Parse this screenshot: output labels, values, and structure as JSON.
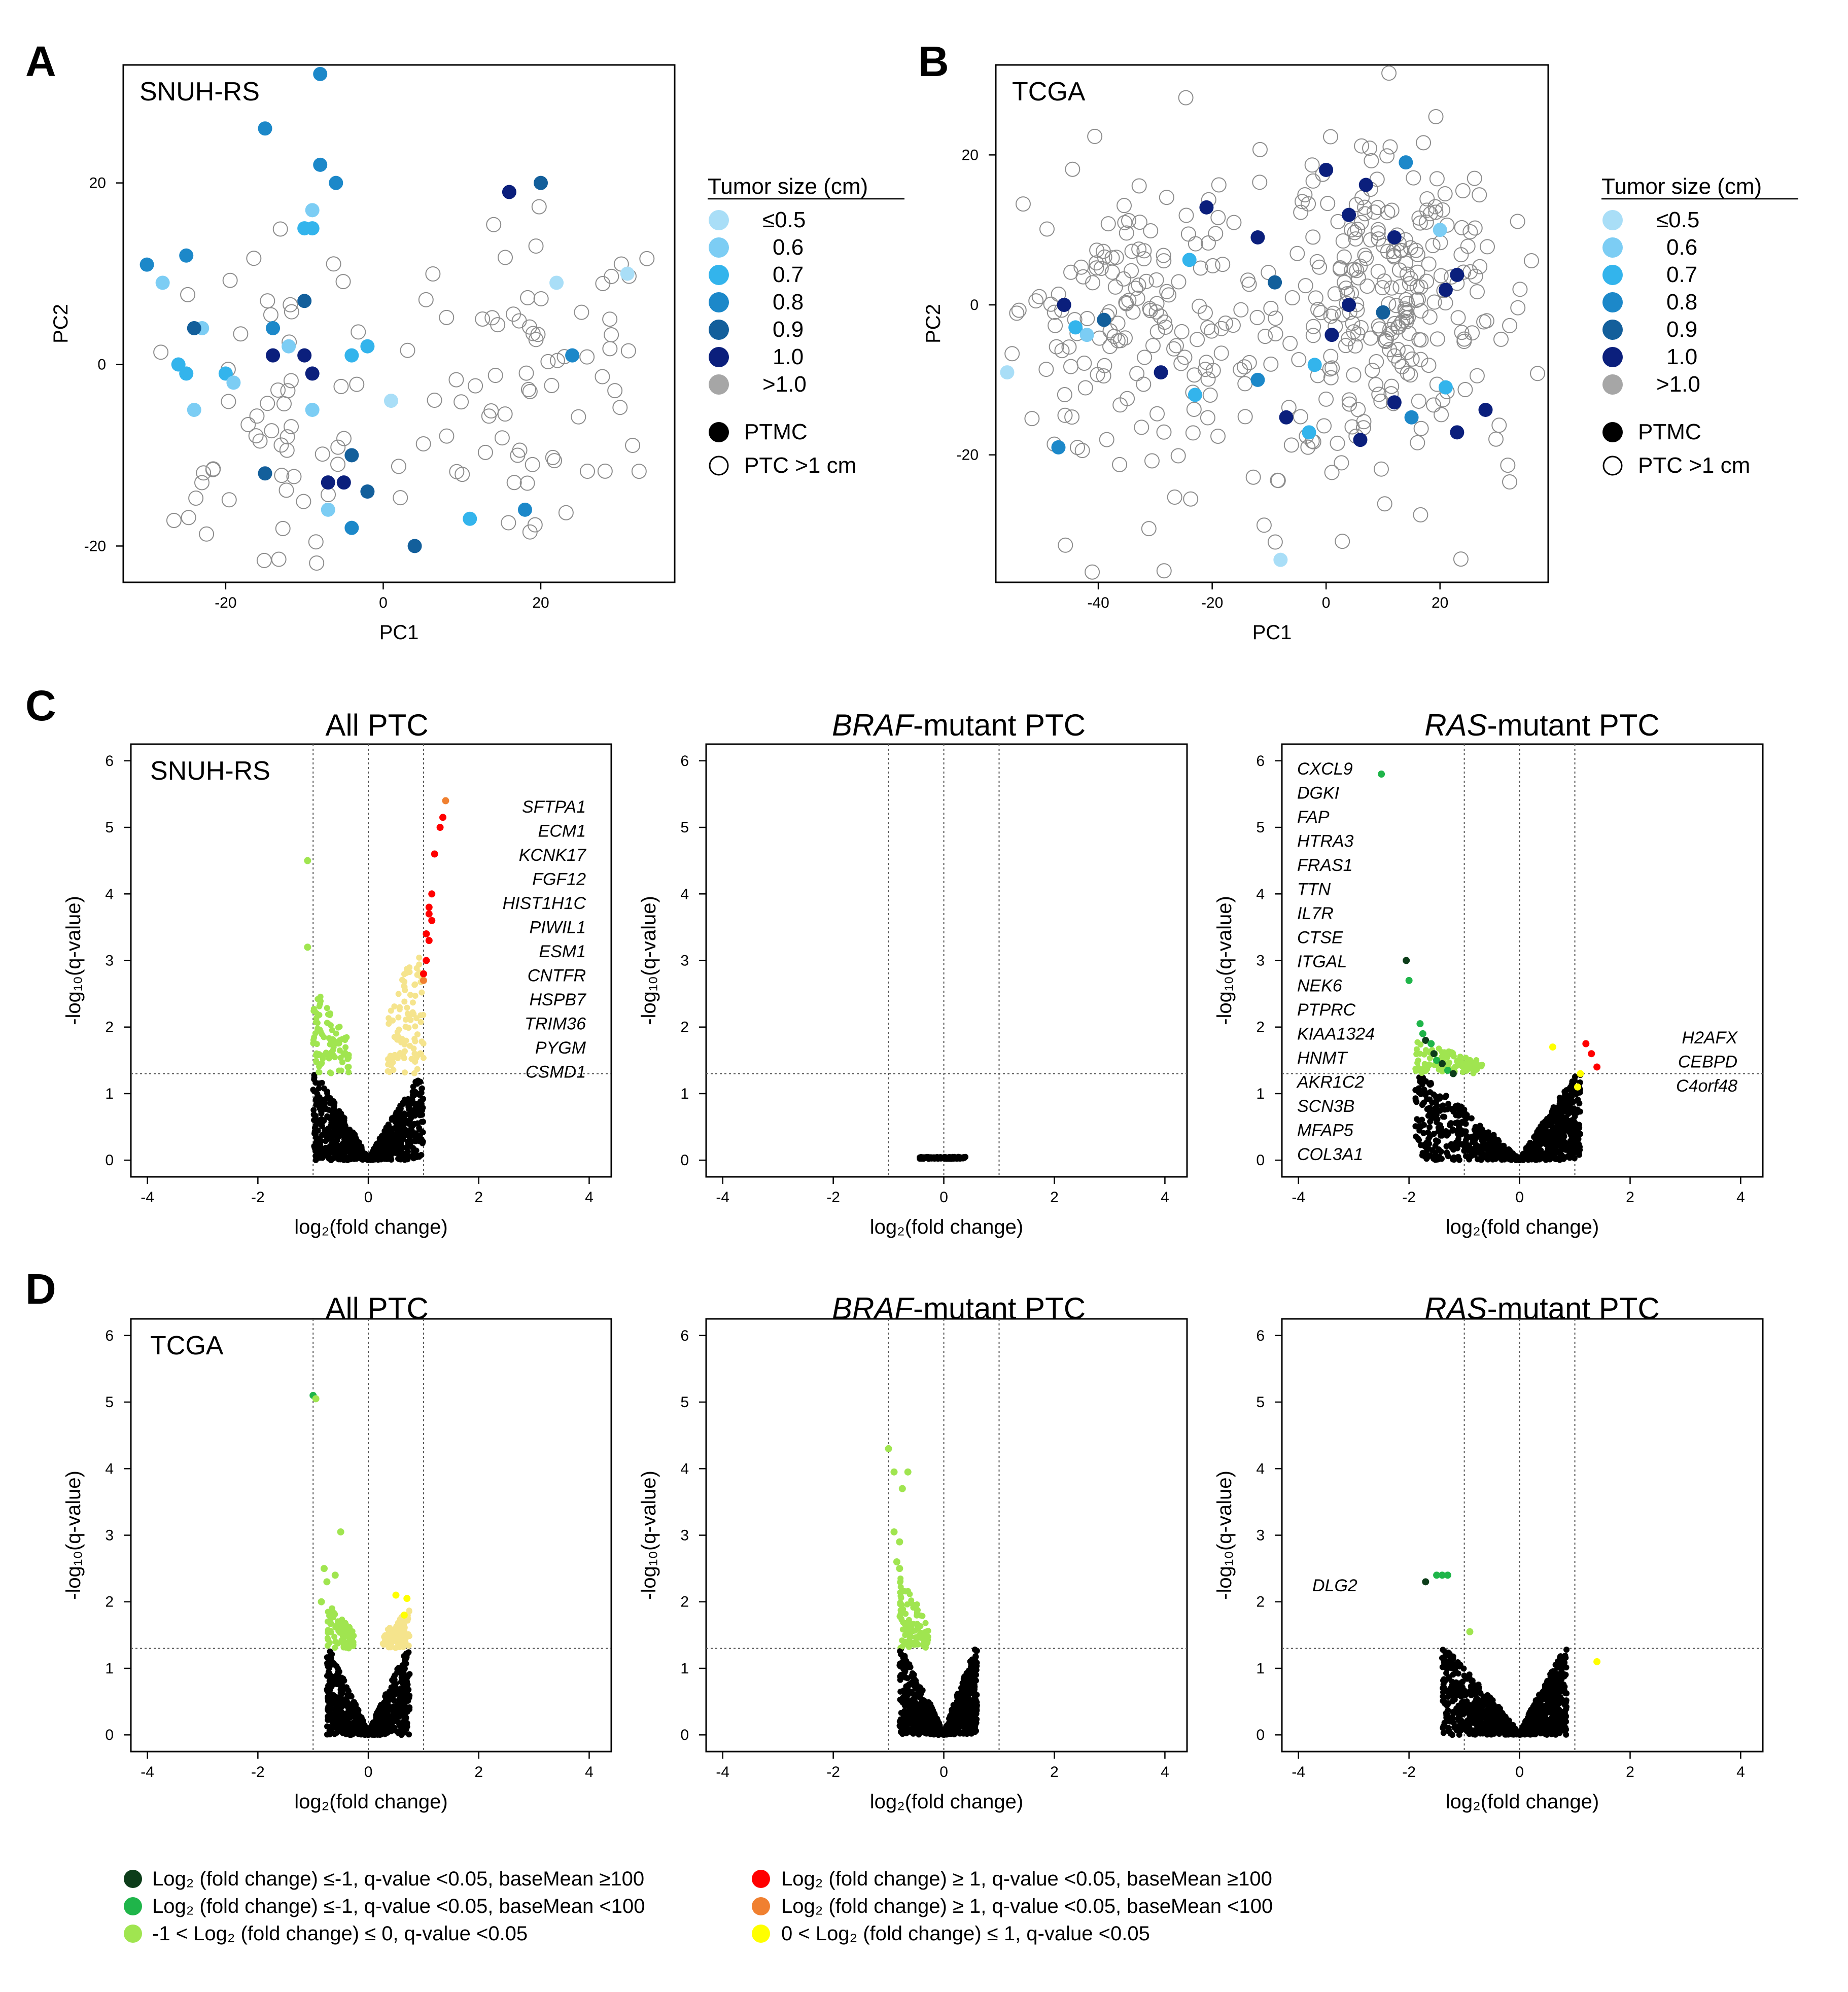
{
  "figure": {
    "panel_letters": [
      "A",
      "B",
      "C",
      "D"
    ],
    "subtitle_all": "All PTC",
    "subtitle_braf_italic": "BRAF",
    "subtitle_braf_rest": "-mutant PTC",
    "subtitle_ras_italic": "RAS",
    "subtitle_ras_rest": "-mutant PTC"
  },
  "tumor_legend": {
    "title": "Tumor size (cm)",
    "items": [
      {
        "label": "≤0.5",
        "color": "#a9def7"
      },
      {
        "label": "0.6",
        "color": "#7ccdf4"
      },
      {
        "label": "0.7",
        "color": "#33b4ec"
      },
      {
        "label": "0.8",
        "color": "#1c88c9"
      },
      {
        "label": "0.9",
        "color": "#135f9b"
      },
      {
        "label": "1.0",
        "color": "#0b1f7c"
      },
      {
        "label": ">1.0",
        "color": "#a6a6a6"
      }
    ],
    "shape_items": [
      "PTMC",
      "PTC >1 cm"
    ]
  },
  "bottom_legend": {
    "left": [
      {
        "text": "Log₂ (fold change) ≤-1, q-value <0.05, baseMean ≥100",
        "color": "#0d3d1a"
      },
      {
        "text": "Log₂ (fold change) ≤-1, q-value <0.05, baseMean <100",
        "color": "#1fb54a"
      },
      {
        "text": "-1 < Log₂ (fold change) ≤ 0, q-value <0.05",
        "color": "#a0e550"
      }
    ],
    "right": [
      {
        "text": "Log₂ (fold change) ≥ 1, q-value <0.05, baseMean ≥100",
        "color": "#ff0000"
      },
      {
        "text": "Log₂ (fold change) ≥ 1, q-value <0.05, baseMean <100",
        "color": "#f08030"
      },
      {
        "text": "0 < Log₂ (fold change) ≤ 1, q-value <0.05",
        "color": "#ffff00"
      }
    ]
  },
  "chart_data": [
    {
      "id": "A",
      "type": "scatter",
      "title": "SNUH-RS",
      "xlabel": "PC1",
      "ylabel": "PC2",
      "xlim": [
        -33,
        37
      ],
      "ylim": [
        -24,
        33
      ],
      "xticks": [
        -20,
        0,
        20
      ],
      "yticks": [
        -20,
        0,
        20
      ],
      "ptmc": [
        [
          -8,
          32
        ],
        [
          -15,
          26
        ],
        [
          -8,
          22
        ],
        [
          -6,
          20
        ],
        [
          -9,
          17
        ],
        [
          -10,
          15
        ],
        [
          -9,
          15
        ],
        [
          -30,
          11
        ],
        [
          -25,
          12
        ],
        [
          -28,
          9
        ],
        [
          -10,
          7
        ],
        [
          -14,
          4
        ],
        [
          -23,
          4
        ],
        [
          -24,
          4
        ],
        [
          -26,
          0
        ],
        [
          -25,
          -1
        ],
        [
          -20,
          -1
        ],
        [
          -19,
          -2
        ],
        [
          -24,
          -5
        ],
        [
          -9,
          -1
        ],
        [
          -14,
          1
        ],
        [
          -10,
          1
        ],
        [
          -12,
          2
        ],
        [
          -4,
          1
        ],
        [
          -2,
          2
        ],
        [
          -9,
          -5
        ],
        [
          -4,
          -10
        ],
        [
          -15,
          -12
        ],
        [
          -7,
          -13
        ],
        [
          -5,
          -13
        ],
        [
          -2,
          -14
        ],
        [
          -7,
          -16
        ],
        [
          -4,
          -18
        ],
        [
          4,
          -20
        ],
        [
          16,
          19
        ],
        [
          20,
          20
        ],
        [
          22,
          9
        ],
        [
          24,
          1
        ],
        [
          31,
          10
        ],
        [
          18,
          -16
        ],
        [
          11,
          -17
        ],
        [
          1,
          -4
        ]
      ],
      "ptmc_colors": [
        "0.8",
        "0.8",
        "0.8",
        "0.8",
        "0.6",
        "0.7",
        "0.7",
        "0.8",
        "0.8",
        "0.6",
        "0.9",
        "0.8",
        "0.6",
        "0.9",
        "0.7",
        "0.7",
        "0.7",
        "0.6",
        "0.6",
        "1.0",
        "1.0",
        "1.0",
        "0.6",
        "0.7",
        "0.7",
        "0.6",
        "0.9",
        "0.9",
        "1.0",
        "1.0",
        "0.9",
        "0.6",
        "0.8",
        "0.9",
        "1.0",
        "0.9",
        "≤0.5",
        "0.8",
        "≤0.5",
        "0.8",
        "0.7",
        "≤0.5"
      ]
    },
    {
      "id": "B",
      "type": "scatter",
      "title": "TCGA",
      "xlabel": "PC1",
      "ylabel": "PC2",
      "xlim": [
        -58,
        39
      ],
      "ylim": [
        -37,
        32
      ],
      "xticks": [
        -40,
        -20,
        0,
        20
      ],
      "yticks": [
        -20,
        0,
        20
      ],
      "ptmc": [
        [
          0,
          18
        ],
        [
          7,
          16
        ],
        [
          14,
          19
        ],
        [
          4,
          12
        ],
        [
          12,
          9
        ],
        [
          20,
          10
        ],
        [
          23,
          4
        ],
        [
          -12,
          9
        ],
        [
          -21,
          13
        ],
        [
          -9,
          3
        ],
        [
          4,
          0
        ],
        [
          10,
          -1
        ],
        [
          21,
          2
        ],
        [
          1,
          -4
        ],
        [
          -46,
          0
        ],
        [
          -39,
          -2
        ],
        [
          -44,
          -3
        ],
        [
          -29,
          -9
        ],
        [
          -23,
          -12
        ],
        [
          -12,
          -10
        ],
        [
          -2,
          -8
        ],
        [
          12,
          -13
        ],
        [
          15,
          -15
        ],
        [
          23,
          -17
        ],
        [
          28,
          -14
        ],
        [
          6,
          -18
        ],
        [
          -7,
          -15
        ],
        [
          -3,
          -17
        ],
        [
          -47,
          -19
        ],
        [
          -8,
          -34
        ],
        [
          -24,
          6
        ],
        [
          -42,
          -4
        ],
        [
          -56,
          -9
        ],
        [
          21,
          -11
        ]
      ],
      "ptmc_colors": [
        "1.0",
        "1.0",
        "0.8",
        "1.0",
        "1.0",
        "0.6",
        "1.0",
        "1.0",
        "1.0",
        "0.9",
        "1.0",
        "0.9",
        "1.0",
        "1.0",
        "1.0",
        "0.9",
        "0.7",
        "1.0",
        "0.7",
        "0.8",
        "0.7",
        "1.0",
        "0.8",
        "1.0",
        "1.0",
        "1.0",
        "1.0",
        "0.7",
        "0.8",
        "≤0.5",
        "0.7",
        "0.6",
        "≤0.5",
        "0.7"
      ]
    },
    {
      "id": "C1",
      "type": "scatter",
      "title": "All PTC",
      "corner_label": "SNUH-RS",
      "xlabel": "log₂(fold change)",
      "ylabel": "-log₁₀(q-value)",
      "xlim": [
        -4.3,
        4.4
      ],
      "ylim": [
        -0.25,
        6.25
      ],
      "xticks": [
        -4,
        -2,
        0,
        2,
        4
      ],
      "yticks": [
        0,
        1,
        2,
        3,
        4,
        5,
        6
      ],
      "genes_up": [
        "SFTPA1",
        "ECM1",
        "KCNK17",
        "FGF12",
        "HIST1H1C",
        "PIWIL1",
        "ESM1",
        "CNTFR",
        "HSPB7",
        "TRIM36",
        "PYGM",
        "CSMD1"
      ],
      "genes_down": [],
      "highlight": [
        {
          "x": -1.1,
          "y": 4.5,
          "cat": "lightgreen"
        },
        {
          "x": -1.1,
          "y": 3.2,
          "cat": "lightgreen"
        },
        {
          "x": 1.4,
          "y": 5.4,
          "cat": "orange"
        },
        {
          "x": 1.35,
          "y": 5.15,
          "cat": "red"
        },
        {
          "x": 1.3,
          "y": 5.0,
          "cat": "red"
        },
        {
          "x": 1.2,
          "y": 4.6,
          "cat": "red"
        },
        {
          "x": 1.15,
          "y": 4.0,
          "cat": "red"
        },
        {
          "x": 1.1,
          "y": 3.8,
          "cat": "red"
        },
        {
          "x": 1.1,
          "y": 3.7,
          "cat": "red"
        },
        {
          "x": 1.15,
          "y": 3.6,
          "cat": "red"
        },
        {
          "x": 1.05,
          "y": 3.4,
          "cat": "red"
        },
        {
          "x": 1.1,
          "y": 3.3,
          "cat": "red"
        },
        {
          "x": 1.05,
          "y": 3.0,
          "cat": "red"
        },
        {
          "x": 1.0,
          "y": 2.8,
          "cat": "red"
        },
        {
          "x": 1.0,
          "y": 2.7,
          "cat": "orange"
        }
      ],
      "cloud": {
        "xmin": -1.0,
        "xmax": 1.0,
        "ymax_sig": 2.7,
        "ymax_sig_pos": 3.6
      }
    },
    {
      "id": "C2",
      "type": "scatter",
      "title": "BRAF-mutant PTC",
      "xlabel": "log₂(fold change)",
      "ylabel": "-log₁₀(q-value)",
      "xlim": [
        -4.3,
        4.4
      ],
      "ylim": [
        -0.25,
        6.25
      ],
      "xticks": [
        -4,
        -2,
        0,
        2,
        4
      ],
      "yticks": [
        0,
        1,
        2,
        3,
        4,
        5,
        6
      ],
      "flat": {
        "xmin": -0.45,
        "xmax": 0.4,
        "y": 0.02
      }
    },
    {
      "id": "C3",
      "type": "scatter",
      "title": "RAS-mutant PTC",
      "xlabel": "log₂(fold change)",
      "ylabel": "-log₁₀(q-value)",
      "xlim": [
        -4.3,
        4.4
      ],
      "ylim": [
        -0.25,
        6.25
      ],
      "xticks": [
        -4,
        -2,
        0,
        2,
        4
      ],
      "yticks": [
        0,
        1,
        2,
        3,
        4,
        5,
        6
      ],
      "genes_down": [
        "CXCL9",
        "DGKI",
        "FAP",
        "HTRA3",
        "FRAS1",
        "TTN",
        "IL7R",
        "CTSE",
        "ITGAL",
        "NEK6",
        "PTPRC",
        "KIAA1324",
        "HNMT",
        "AKR1C2",
        "SCN3B",
        "MFAP5",
        "COL3A1"
      ],
      "genes_up": [
        "H2AFX",
        "CEBPD",
        "C4orf48"
      ],
      "highlight": [
        {
          "x": -2.5,
          "y": 5.8,
          "cat": "green"
        },
        {
          "x": -2.05,
          "y": 3.0,
          "cat": "darkgreen"
        },
        {
          "x": -2.0,
          "y": 2.7,
          "cat": "green"
        },
        {
          "x": -1.8,
          "y": 2.05,
          "cat": "green"
        },
        {
          "x": -1.75,
          "y": 1.9,
          "cat": "green"
        },
        {
          "x": -1.7,
          "y": 1.8,
          "cat": "darkgreen"
        },
        {
          "x": -1.6,
          "y": 1.75,
          "cat": "green"
        },
        {
          "x": -1.55,
          "y": 1.6,
          "cat": "darkgreen"
        },
        {
          "x": -1.5,
          "y": 1.5,
          "cat": "green"
        },
        {
          "x": -1.4,
          "y": 1.45,
          "cat": "darkgreen"
        },
        {
          "x": -1.3,
          "y": 1.35,
          "cat": "green"
        },
        {
          "x": -1.2,
          "y": 1.3,
          "cat": "darkgreen"
        },
        {
          "x": 1.2,
          "y": 1.75,
          "cat": "red"
        },
        {
          "x": 1.3,
          "y": 1.6,
          "cat": "red"
        },
        {
          "x": 1.4,
          "y": 1.4,
          "cat": "red"
        },
        {
          "x": 0.6,
          "y": 1.7,
          "cat": "yellow"
        },
        {
          "x": 1.1,
          "y": 1.3,
          "cat": "yellow"
        },
        {
          "x": 1.05,
          "y": 1.1,
          "cat": "yellow"
        }
      ],
      "cloud": {
        "xmin": -1.9,
        "xmax": 1.1,
        "ymax_sig": 1.8,
        "ymax_sig_pos": 1.2
      }
    },
    {
      "id": "D1",
      "type": "scatter",
      "title": "All PTC",
      "corner_label": "TCGA",
      "xlabel": "log₂(fold change)",
      "ylabel": "-log₁₀(q-value)",
      "xlim": [
        -4.3,
        4.4
      ],
      "ylim": [
        -0.25,
        6.25
      ],
      "xticks": [
        -4,
        -2,
        0,
        2,
        4
      ],
      "yticks": [
        0,
        1,
        2,
        3,
        4,
        5,
        6
      ],
      "highlight": [
        {
          "x": -1.0,
          "y": 5.1,
          "cat": "green"
        },
        {
          "x": -0.95,
          "y": 5.05,
          "cat": "lightgreen"
        },
        {
          "x": -0.5,
          "y": 3.05,
          "cat": "lightgreen"
        },
        {
          "x": -0.8,
          "y": 2.5,
          "cat": "lightgreen"
        },
        {
          "x": -0.75,
          "y": 2.3,
          "cat": "lightgreen"
        },
        {
          "x": -0.6,
          "y": 2.4,
          "cat": "lightgreen"
        },
        {
          "x": -0.85,
          "y": 2.0,
          "cat": "lightgreen"
        },
        {
          "x": 0.5,
          "y": 2.1,
          "cat": "yellow"
        },
        {
          "x": 0.7,
          "y": 2.05,
          "cat": "yellow"
        },
        {
          "x": 0.65,
          "y": 1.8,
          "cat": "yellow"
        }
      ],
      "cloud": {
        "xmin": -0.75,
        "xmax": 0.75,
        "ymax_sig": 2.0,
        "ymax_sig_pos": 1.9
      }
    },
    {
      "id": "D2",
      "type": "scatter",
      "title": "BRAF-mutant PTC",
      "xlabel": "log₂(fold change)",
      "ylabel": "-log₁₀(q-value)",
      "xlim": [
        -4.3,
        4.4
      ],
      "ylim": [
        -0.25,
        6.25
      ],
      "xticks": [
        -4,
        -2,
        0,
        2,
        4
      ],
      "yticks": [
        0,
        1,
        2,
        3,
        4,
        5,
        6
      ],
      "highlight": [
        {
          "x": -1.0,
          "y": 4.3,
          "cat": "lightgreen"
        },
        {
          "x": -0.9,
          "y": 3.95,
          "cat": "lightgreen"
        },
        {
          "x": -0.65,
          "y": 3.95,
          "cat": "lightgreen"
        },
        {
          "x": -0.75,
          "y": 3.7,
          "cat": "lightgreen"
        },
        {
          "x": -0.9,
          "y": 3.05,
          "cat": "lightgreen"
        },
        {
          "x": -0.8,
          "y": 2.9,
          "cat": "lightgreen"
        },
        {
          "x": -0.85,
          "y": 2.6,
          "cat": "lightgreen"
        },
        {
          "x": -0.8,
          "y": 2.5,
          "cat": "lightgreen"
        }
      ],
      "cloud": {
        "xmin": -0.8,
        "xmax": 0.6,
        "ymax_sig": 2.4,
        "ymax_sig_pos": 0
      }
    },
    {
      "id": "D3",
      "type": "scatter",
      "title": "RAS-mutant PTC",
      "xlabel": "log₂(fold change)",
      "ylabel": "-log₁₀(q-value)",
      "xlim": [
        -4.3,
        4.4
      ],
      "ylim": [
        -0.25,
        6.25
      ],
      "xticks": [
        -4,
        -2,
        0,
        2,
        4
      ],
      "yticks": [
        0,
        1,
        2,
        3,
        4,
        5,
        6
      ],
      "genes_down": [
        "DLG2"
      ],
      "highlight": [
        {
          "x": -1.7,
          "y": 2.3,
          "cat": "darkgreen"
        },
        {
          "x": -1.5,
          "y": 2.4,
          "cat": "green"
        },
        {
          "x": -1.4,
          "y": 2.4,
          "cat": "green"
        },
        {
          "x": -1.3,
          "y": 2.4,
          "cat": "green"
        },
        {
          "x": -0.9,
          "y": 1.55,
          "cat": "lightgreen"
        },
        {
          "x": 1.4,
          "y": 1.1,
          "cat": "yellow"
        }
      ],
      "cloud": {
        "xmin": -1.4,
        "xmax": 0.85,
        "ymax_sig": 1.2,
        "ymax_sig_pos": 0
      }
    }
  ]
}
